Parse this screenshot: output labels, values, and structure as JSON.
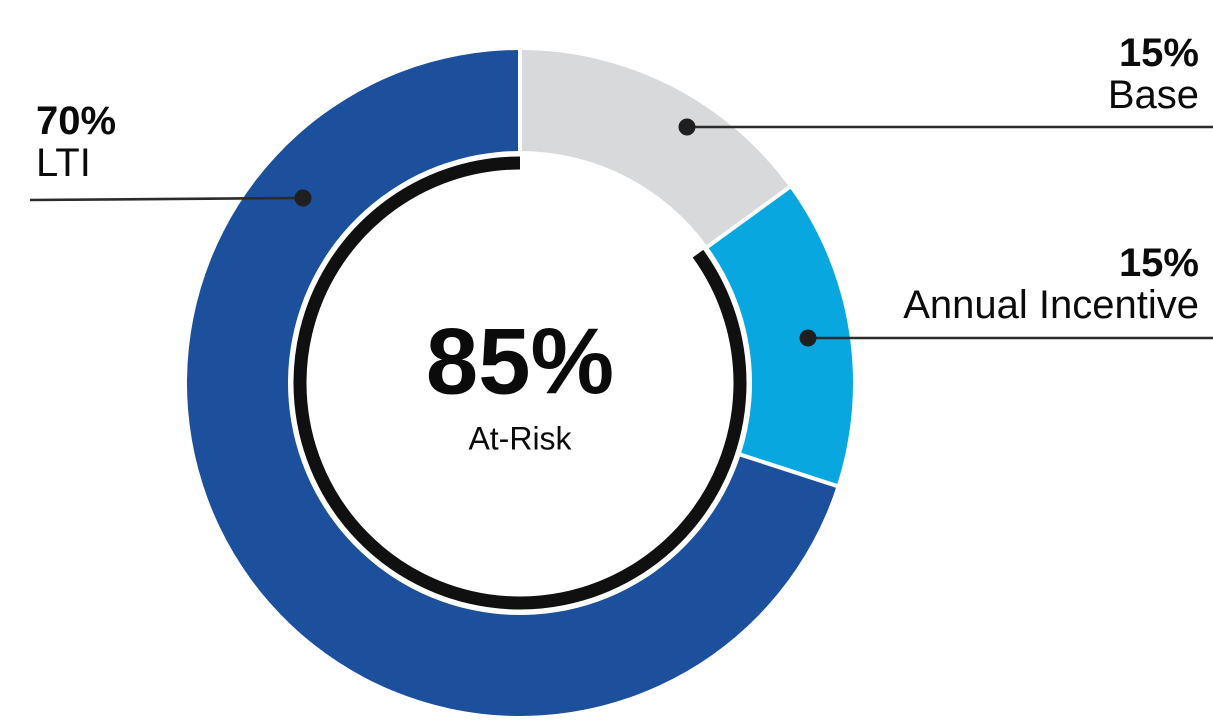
{
  "chart_data": {
    "type": "pie",
    "subtype": "donut",
    "title": "",
    "slices": [
      {
        "label": "Base",
        "pct_label": "15%",
        "value": 15,
        "color": "#d8d9da"
      },
      {
        "label": "Annual Incentive",
        "pct_label": "15%",
        "value": 15,
        "color": "#09a7e0"
      },
      {
        "label": "LTI",
        "pct_label": "70%",
        "value": 70,
        "color": "#1c4f9c"
      }
    ],
    "start_angle_deg": 0,
    "direction": "clockwise",
    "center": {
      "value": "85%",
      "label": "At-Risk"
    },
    "at_risk_arc": {
      "value": 85,
      "color": "#101010"
    },
    "layout": {
      "legend": "none",
      "callouts": true,
      "background": "#ffffff",
      "callout_line_color": "#2b2b2b"
    }
  }
}
